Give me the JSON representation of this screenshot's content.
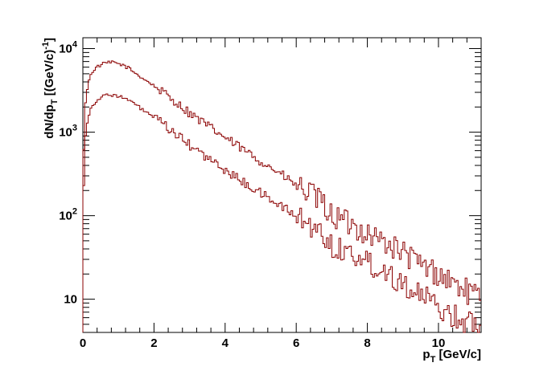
{
  "chart_data": {
    "type": "line",
    "title": "",
    "xlabel": {
      "main": "p",
      "sub": "T",
      "rest": " [GeV/c]"
    },
    "ylabel": {
      "a": "dN/dp",
      "sub": "T",
      "b": " [(GeV/c)",
      "sup": "-1",
      "c": "]"
    },
    "xlim": [
      0,
      11.2
    ],
    "ylim": [
      4,
      13500
    ],
    "yscale": "log",
    "grid": false,
    "x_ticks": [
      0,
      2,
      4,
      6,
      8,
      10
    ],
    "x_tick_labels": [
      "0",
      "2",
      "4",
      "6",
      "8",
      "10"
    ],
    "y_ticks": [
      10,
      100,
      1000,
      10000
    ],
    "y_tick_labels": [
      {
        "base": "10",
        "exp": ""
      },
      {
        "base": "10",
        "exp": "2"
      },
      {
        "base": "10",
        "exp": "3"
      },
      {
        "base": "10",
        "exp": "4"
      }
    ],
    "bin_width": 0.05,
    "series": [
      {
        "color": "#8b0000",
        "points": [
          [
            0,
            200
          ],
          [
            0.05,
            1800
          ],
          [
            0.1,
            3000
          ],
          [
            0.2,
            4600
          ],
          [
            0.3,
            5600
          ],
          [
            0.5,
            6400
          ],
          [
            0.7,
            6800
          ],
          [
            0.9,
            6800
          ],
          [
            1.1,
            6400
          ],
          [
            1.3,
            5800
          ],
          [
            1.5,
            5000
          ],
          [
            2.0,
            3600
          ],
          [
            2.5,
            2500
          ],
          [
            3.0,
            1700
          ],
          [
            3.5,
            1200
          ],
          [
            4.0,
            860
          ],
          [
            4.5,
            620
          ],
          [
            5.0,
            450
          ],
          [
            5.5,
            330
          ],
          [
            6.0,
            230
          ],
          [
            6.5,
            170
          ],
          [
            6.8,
            130
          ],
          [
            7.0,
            100
          ],
          [
            7.5,
            80
          ],
          [
            8.0,
            62
          ],
          [
            8.5,
            48
          ],
          [
            9.0,
            36
          ],
          [
            9.5,
            26
          ],
          [
            10.0,
            20
          ],
          [
            10.5,
            15
          ],
          [
            11.0,
            11
          ],
          [
            11.2,
            10
          ]
        ]
      },
      {
        "color": "#8b0000",
        "points": [
          [
            0,
            80
          ],
          [
            0.05,
            700
          ],
          [
            0.1,
            1200
          ],
          [
            0.2,
            1800
          ],
          [
            0.3,
            2200
          ],
          [
            0.5,
            2600
          ],
          [
            0.7,
            2800
          ],
          [
            0.9,
            2800
          ],
          [
            1.1,
            2600
          ],
          [
            1.3,
            2400
          ],
          [
            1.5,
            2100
          ],
          [
            2.0,
            1500
          ],
          [
            2.5,
            1030
          ],
          [
            3.0,
            700
          ],
          [
            3.5,
            490
          ],
          [
            4.0,
            350
          ],
          [
            4.5,
            255
          ],
          [
            5.0,
            185
          ],
          [
            5.5,
            138
          ],
          [
            6.0,
            98
          ],
          [
            6.5,
            72
          ],
          [
            6.8,
            56
          ],
          [
            7.0,
            44
          ],
          [
            7.5,
            36
          ],
          [
            8.0,
            28
          ],
          [
            8.5,
            22
          ],
          [
            9.0,
            16
          ],
          [
            9.5,
            11
          ],
          [
            10.0,
            8
          ],
          [
            10.5,
            6
          ],
          [
            11.0,
            5
          ],
          [
            11.2,
            5
          ]
        ]
      }
    ]
  }
}
